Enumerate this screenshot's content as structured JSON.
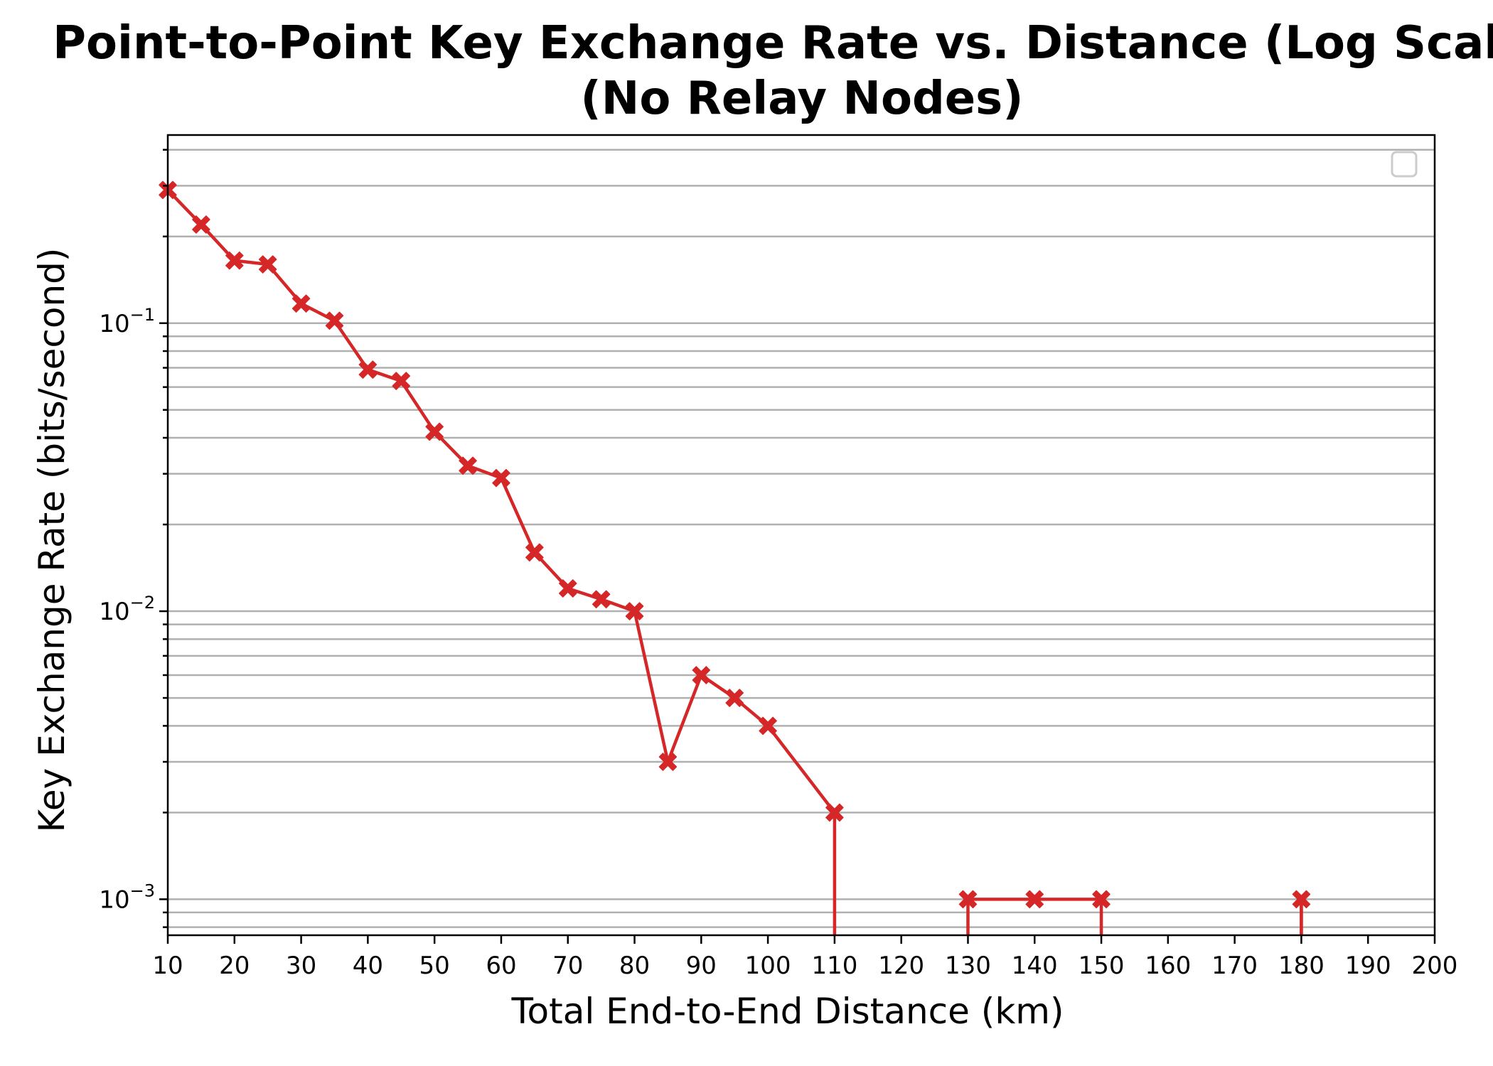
{
  "chart_data": {
    "type": "line",
    "title": "Point-to-Point Key Exchange Rate vs. Distance (Log Scale)",
    "subtitle": "(No Relay Nodes)",
    "xlabel": "Total End-to-End Distance (km)",
    "ylabel": "Key Exchange Rate (bits/second)",
    "xlim": [
      10,
      200
    ],
    "ylim": [
      0.00075,
      0.45
    ],
    "yscale": "log",
    "grid": "y-major-and-minor",
    "legend": {
      "placement": "top-right",
      "entries": []
    },
    "x_ticks": [
      10,
      20,
      30,
      40,
      50,
      60,
      70,
      80,
      90,
      100,
      110,
      120,
      130,
      140,
      150,
      160,
      170,
      180,
      190,
      200
    ],
    "y_ticks": [
      {
        "value": 0.1,
        "base": "10",
        "exp": "−1"
      },
      {
        "value": 0.01,
        "base": "10",
        "exp": "−2"
      },
      {
        "value": 0.001,
        "base": "10",
        "exp": "−3"
      }
    ],
    "colors": {
      "series": "#d62728",
      "grid": "#b0b0b0"
    },
    "series": [
      {
        "marker": "x-filled",
        "x": [
          10,
          15,
          20,
          25,
          30,
          35,
          40,
          45,
          50,
          55,
          60,
          65,
          70,
          75,
          80,
          85,
          90,
          95,
          100,
          110,
          120,
          130,
          140,
          150,
          160,
          170,
          180,
          190,
          200
        ],
        "y": [
          0.29,
          0.22,
          0.165,
          0.16,
          0.117,
          0.102,
          0.069,
          0.063,
          0.042,
          0.032,
          0.029,
          0.016,
          0.012,
          0.011,
          0.01,
          0.003,
          0.006,
          0.005,
          0.004,
          0.002,
          0,
          0.001,
          0.001,
          0.001,
          0,
          0,
          0.001,
          0,
          0
        ]
      }
    ]
  }
}
